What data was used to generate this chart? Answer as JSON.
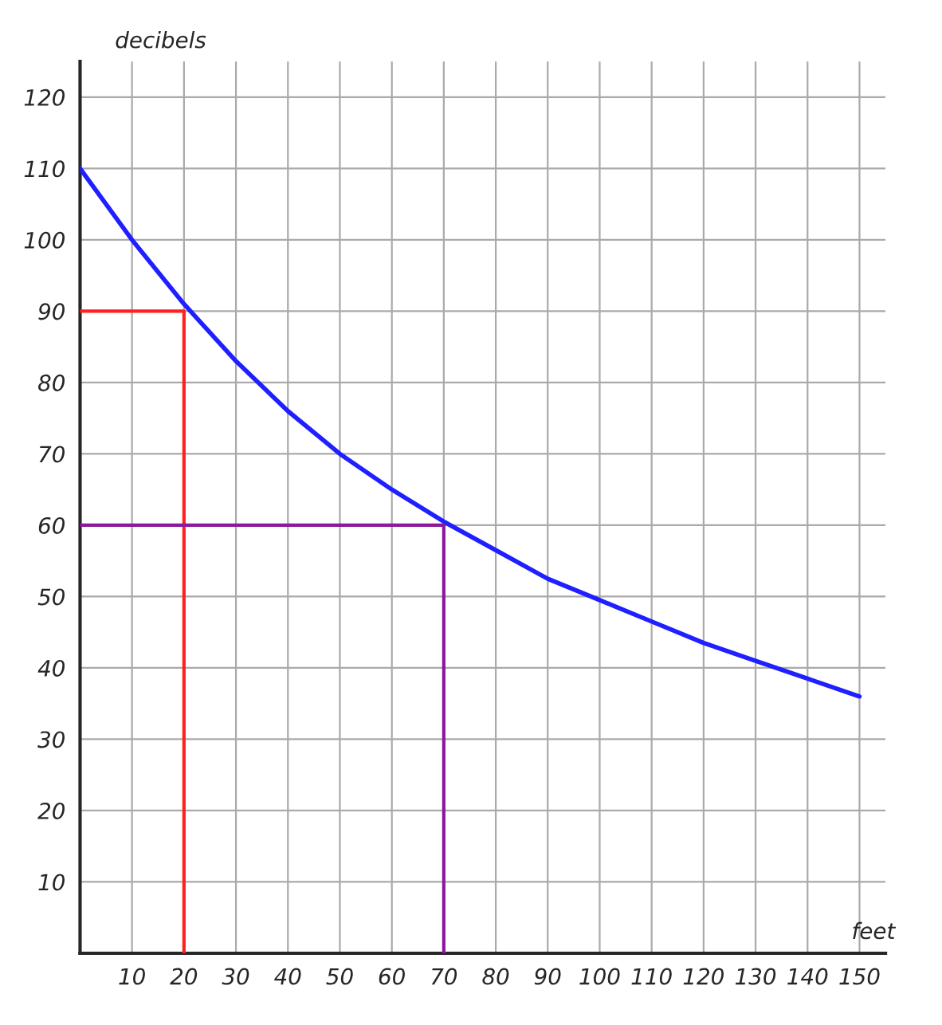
{
  "chart_data": {
    "type": "line",
    "xlabel": "feet",
    "ylabel": "decibels",
    "xlim": [
      0,
      155
    ],
    "ylim": [
      0,
      125
    ],
    "xticks": [
      10,
      20,
      30,
      40,
      50,
      60,
      70,
      80,
      90,
      100,
      110,
      120,
      130,
      140,
      150
    ],
    "yticks": [
      10,
      20,
      30,
      40,
      50,
      60,
      70,
      80,
      90,
      100,
      110,
      120
    ],
    "grid": true,
    "marker": "none",
    "line_style": "solid",
    "series": [
      {
        "color": "#1f1fff",
        "x": [
          0,
          10,
          20,
          30,
          40,
          50,
          60,
          70,
          80,
          90,
          100,
          110,
          120,
          130,
          140,
          150
        ],
        "values": [
          110,
          100,
          91,
          83,
          76,
          70,
          65,
          60.5,
          56.5,
          52.5,
          49.5,
          46.5,
          43.5,
          41,
          38.5,
          36
        ]
      },
      {
        "color": "#ff2020",
        "x": [
          0,
          20,
          20
        ],
        "values": [
          90,
          90,
          0
        ]
      },
      {
        "color": "#8b1a9a",
        "x": [
          70,
          70,
          0
        ],
        "values": [
          0,
          60,
          60
        ]
      }
    ]
  }
}
